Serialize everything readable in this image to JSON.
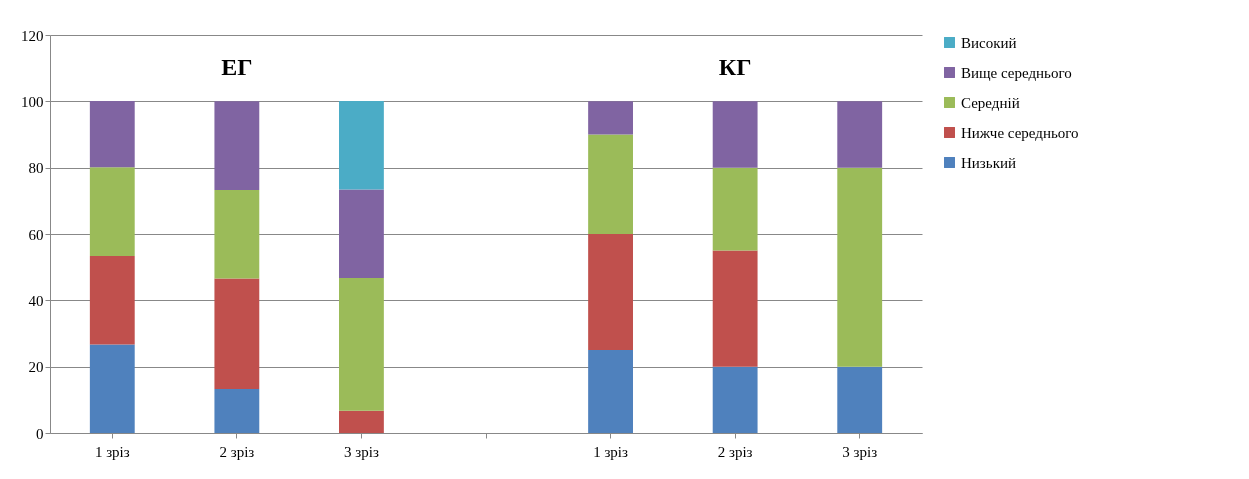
{
  "chart_data": {
    "type": "bar",
    "stacked": true,
    "categories": [
      "1 зріз",
      "2 зріз",
      "3 зріз",
      null,
      "1 зріз",
      "2 зріз",
      "3 зріз"
    ],
    "series": [
      {
        "name": "Низький",
        "color": "#4f81bd",
        "values": [
          26.7,
          13.3,
          0,
          null,
          25,
          20,
          20
        ]
      },
      {
        "name": "Нижче середнього",
        "color": "#c0504d",
        "values": [
          26.7,
          33.3,
          6.7,
          null,
          35,
          35,
          0
        ]
      },
      {
        "name": "Середній",
        "color": "#9bbb59",
        "values": [
          26.7,
          26.7,
          40,
          null,
          30,
          25,
          60
        ]
      },
      {
        "name": "Вище середнього",
        "color": "#8064a2",
        "values": [
          20,
          26.7,
          26.7,
          null,
          10,
          20,
          20
        ]
      },
      {
        "name": "Високий",
        "color": "#4bacc6",
        "values": [
          0,
          0,
          26.7,
          null,
          0,
          0,
          0
        ]
      }
    ],
    "ylim": [
      0,
      120
    ],
    "yticks": [
      0,
      20,
      40,
      60,
      80,
      100,
      120
    ],
    "grid": "y",
    "legend": "right",
    "annotations": [
      "ЕГ",
      "КГ"
    ]
  }
}
